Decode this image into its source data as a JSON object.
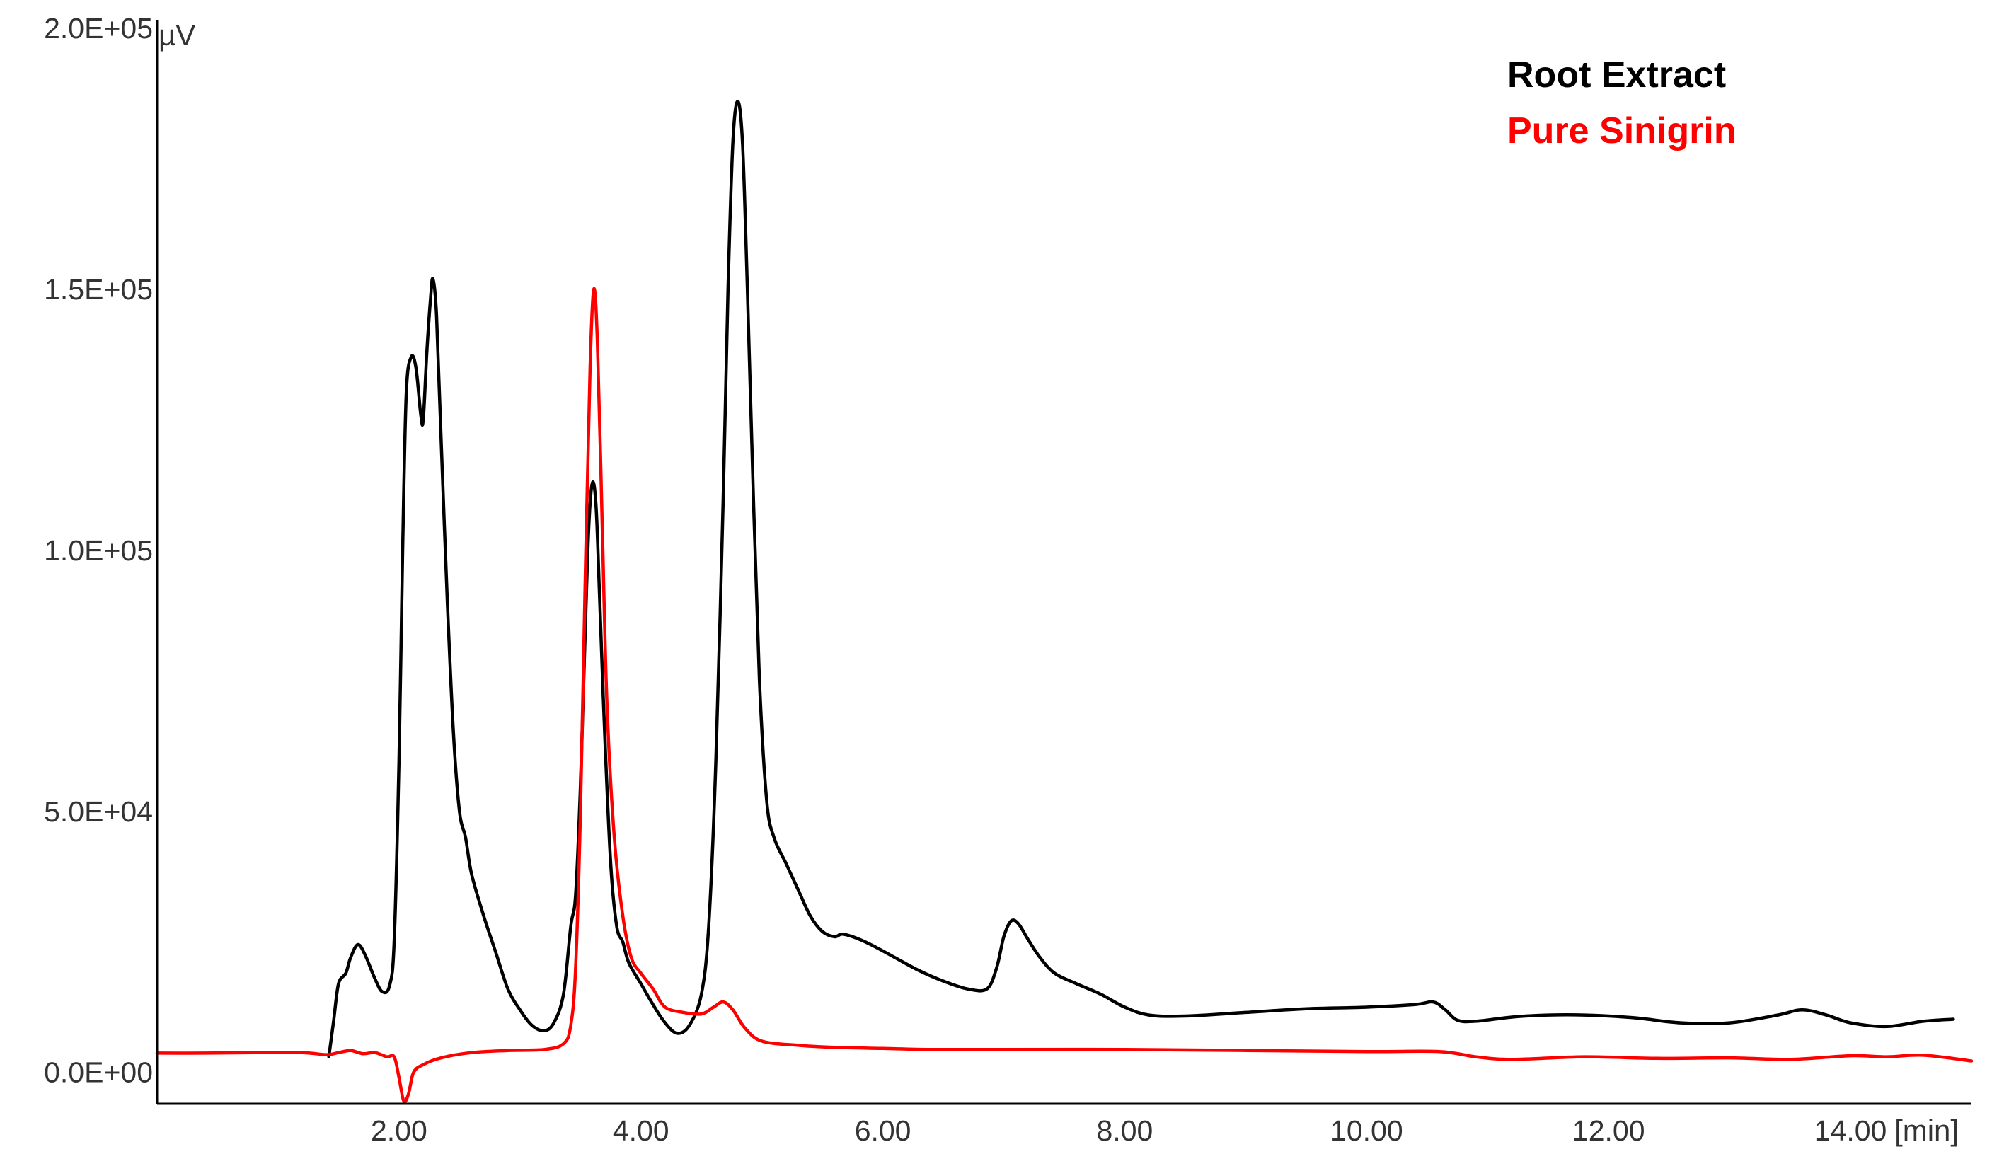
{
  "chart_data": {
    "type": "line",
    "title": "",
    "xlabel": "",
    "ylabel": "",
    "x_unit": "[min]",
    "y_unit": "µV",
    "xlim": [
      0,
      15.0
    ],
    "ylim": [
      -6000,
      200000
    ],
    "x_ticks": [
      {
        "value": 2,
        "label": "2.00"
      },
      {
        "value": 4,
        "label": "4.00"
      },
      {
        "value": 6,
        "label": "6.00"
      },
      {
        "value": 8,
        "label": "8.00"
      },
      {
        "value": 10,
        "label": "10.00"
      },
      {
        "value": 12,
        "label": "12.00"
      },
      {
        "value": 14,
        "label": "14.00"
      }
    ],
    "y_ticks": [
      {
        "value": 0,
        "label": "0.0E+00"
      },
      {
        "value": 50000,
        "label": "5.0E+04"
      },
      {
        "value": 100000,
        "label": "1.0E+05"
      },
      {
        "value": 150000,
        "label": "1.5E+05"
      },
      {
        "value": 200000,
        "label": "2.0E+05"
      }
    ],
    "grid": false,
    "legend_position": "top-right",
    "series": [
      {
        "name": "Root Extract",
        "color": "#000000",
        "points": [
          [
            1.42,
            3000
          ],
          [
            1.46,
            10000
          ],
          [
            1.5,
            17000
          ],
          [
            1.56,
            19000
          ],
          [
            1.6,
            22000
          ],
          [
            1.66,
            24500
          ],
          [
            1.72,
            22500
          ],
          [
            1.8,
            18000
          ],
          [
            1.86,
            15500
          ],
          [
            1.92,
            16500
          ],
          [
            1.96,
            25000
          ],
          [
            2.0,
            60000
          ],
          [
            2.03,
            100000
          ],
          [
            2.06,
            130000
          ],
          [
            2.1,
            137000
          ],
          [
            2.14,
            135000
          ],
          [
            2.18,
            126000
          ],
          [
            2.2,
            125000
          ],
          [
            2.23,
            138000
          ],
          [
            2.26,
            148000
          ],
          [
            2.28,
            152000
          ],
          [
            2.31,
            145000
          ],
          [
            2.35,
            120000
          ],
          [
            2.4,
            90000
          ],
          [
            2.45,
            65000
          ],
          [
            2.5,
            50000
          ],
          [
            2.55,
            45000
          ],
          [
            2.6,
            38000
          ],
          [
            2.7,
            30000
          ],
          [
            2.8,
            23000
          ],
          [
            2.9,
            16000
          ],
          [
            3.0,
            12000
          ],
          [
            3.1,
            9000
          ],
          [
            3.2,
            8000
          ],
          [
            3.28,
            9500
          ],
          [
            3.36,
            15000
          ],
          [
            3.42,
            28000
          ],
          [
            3.46,
            34000
          ],
          [
            3.5,
            55000
          ],
          [
            3.54,
            85000
          ],
          [
            3.57,
            105000
          ],
          [
            3.6,
            113000
          ],
          [
            3.63,
            108000
          ],
          [
            3.66,
            90000
          ],
          [
            3.7,
            65000
          ],
          [
            3.75,
            40000
          ],
          [
            3.8,
            28000
          ],
          [
            3.85,
            25000
          ],
          [
            3.9,
            21000
          ],
          [
            4.0,
            17000
          ],
          [
            4.1,
            13000
          ],
          [
            4.2,
            9500
          ],
          [
            4.3,
            7500
          ],
          [
            4.4,
            9000
          ],
          [
            4.5,
            15000
          ],
          [
            4.56,
            28000
          ],
          [
            4.62,
            60000
          ],
          [
            4.68,
            110000
          ],
          [
            4.72,
            150000
          ],
          [
            4.76,
            178000
          ],
          [
            4.8,
            186000
          ],
          [
            4.84,
            178000
          ],
          [
            4.88,
            150000
          ],
          [
            4.93,
            110000
          ],
          [
            4.98,
            75000
          ],
          [
            5.04,
            52000
          ],
          [
            5.1,
            45000
          ],
          [
            5.2,
            40000
          ],
          [
            5.3,
            35000
          ],
          [
            5.4,
            30000
          ],
          [
            5.5,
            27000
          ],
          [
            5.6,
            26000
          ],
          [
            5.66,
            26500
          ],
          [
            5.75,
            26000
          ],
          [
            5.9,
            24500
          ],
          [
            6.1,
            22000
          ],
          [
            6.3,
            19500
          ],
          [
            6.5,
            17500
          ],
          [
            6.7,
            16000
          ],
          [
            6.86,
            16000
          ],
          [
            6.94,
            20000
          ],
          [
            7.0,
            26000
          ],
          [
            7.06,
            29000
          ],
          [
            7.12,
            28500
          ],
          [
            7.2,
            25500
          ],
          [
            7.3,
            22000
          ],
          [
            7.42,
            19000
          ],
          [
            7.6,
            17000
          ],
          [
            7.8,
            15000
          ],
          [
            8.0,
            12500
          ],
          [
            8.2,
            11000
          ],
          [
            8.5,
            10800
          ],
          [
            9.0,
            11500
          ],
          [
            9.5,
            12200
          ],
          [
            10.0,
            12500
          ],
          [
            10.4,
            13000
          ],
          [
            10.55,
            13500
          ],
          [
            10.65,
            12000
          ],
          [
            10.75,
            10000
          ],
          [
            10.9,
            9800
          ],
          [
            11.2,
            10600
          ],
          [
            11.5,
            11000
          ],
          [
            11.8,
            11000
          ],
          [
            12.2,
            10500
          ],
          [
            12.6,
            9500
          ],
          [
            13.0,
            9500
          ],
          [
            13.4,
            11000
          ],
          [
            13.6,
            12000
          ],
          [
            13.8,
            11000
          ],
          [
            14.0,
            9500
          ],
          [
            14.3,
            8800
          ],
          [
            14.6,
            9800
          ],
          [
            14.85,
            10200
          ],
          [
            15.1,
            9600
          ],
          [
            15.4,
            8800
          ],
          [
            15.6,
            8400
          ],
          [
            15.7,
            8200
          ]
        ]
      },
      {
        "name": "Pure Sinigrin",
        "color": "#ff0000",
        "points": [
          [
            0.0,
            3700
          ],
          [
            0.4,
            3700
          ],
          [
            0.8,
            3800
          ],
          [
            1.2,
            3800
          ],
          [
            1.4,
            3400
          ],
          [
            1.5,
            3800
          ],
          [
            1.6,
            4200
          ],
          [
            1.7,
            3600
          ],
          [
            1.8,
            3800
          ],
          [
            1.9,
            3000
          ],
          [
            1.96,
            3000
          ],
          [
            2.0,
            -1000
          ],
          [
            2.04,
            -5500
          ],
          [
            2.08,
            -4000
          ],
          [
            2.12,
            0
          ],
          [
            2.2,
            1500
          ],
          [
            2.35,
            2800
          ],
          [
            2.6,
            3800
          ],
          [
            2.9,
            4200
          ],
          [
            3.2,
            4400
          ],
          [
            3.36,
            5500
          ],
          [
            3.42,
            9000
          ],
          [
            3.46,
            20000
          ],
          [
            3.5,
            50000
          ],
          [
            3.54,
            95000
          ],
          [
            3.58,
            135000
          ],
          [
            3.61,
            150000
          ],
          [
            3.64,
            140000
          ],
          [
            3.68,
            105000
          ],
          [
            3.72,
            70000
          ],
          [
            3.78,
            45000
          ],
          [
            3.85,
            30000
          ],
          [
            3.92,
            22000
          ],
          [
            4.0,
            19000
          ],
          [
            4.1,
            16000
          ],
          [
            4.2,
            12500
          ],
          [
            4.35,
            11500
          ],
          [
            4.5,
            11200
          ],
          [
            4.6,
            12500
          ],
          [
            4.68,
            13500
          ],
          [
            4.76,
            12000
          ],
          [
            4.86,
            8500
          ],
          [
            5.0,
            6000
          ],
          [
            5.3,
            5200
          ],
          [
            5.6,
            4800
          ],
          [
            6.0,
            4600
          ],
          [
            6.4,
            4400
          ],
          [
            7.0,
            4400
          ],
          [
            8.0,
            4400
          ],
          [
            9.0,
            4200
          ],
          [
            10.0,
            4000
          ],
          [
            10.6,
            4000
          ],
          [
            10.9,
            3000
          ],
          [
            11.2,
            2500
          ],
          [
            11.8,
            3000
          ],
          [
            12.4,
            2700
          ],
          [
            13.0,
            2800
          ],
          [
            13.5,
            2500
          ],
          [
            14.0,
            3200
          ],
          [
            14.3,
            3000
          ],
          [
            14.6,
            3300
          ],
          [
            15.0,
            2200
          ],
          [
            15.3,
            1800
          ],
          [
            15.6,
            2500
          ],
          [
            15.7,
            2800
          ]
        ]
      }
    ]
  }
}
